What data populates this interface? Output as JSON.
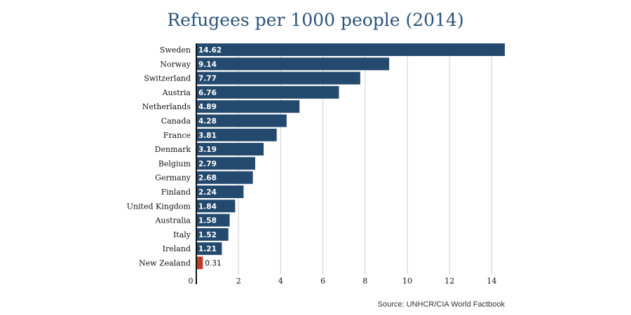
{
  "chart_data": {
    "type": "bar",
    "orientation": "horizontal",
    "title": "Refugees per 1000 people (2014)",
    "source": "Source: UNHCR/CIA World Factbook",
    "categories": [
      "Sweden",
      "Norway",
      "Switzerland",
      "Austria",
      "Netherlands",
      "Canada",
      "France",
      "Denmark",
      "Belgium",
      "Germany",
      "Finland",
      "United Kingdom",
      "Australia",
      "Italy",
      "Ireland",
      "New Zealand"
    ],
    "values": [
      14.62,
      9.14,
      7.77,
      6.76,
      4.89,
      4.28,
      3.81,
      3.19,
      2.79,
      2.68,
      2.24,
      1.84,
      1.58,
      1.52,
      1.21,
      0.31
    ],
    "value_labels": [
      "14.62",
      "9.14",
      "7.77",
      "6.76",
      "4.89",
      "4.28",
      "3.81",
      "3.19",
      "2.79",
      "2.68",
      "2.24",
      "1.84",
      "1.58",
      "1.52",
      "1.21",
      "0.31"
    ],
    "bar_colors": [
      "#234a6e",
      "#234a6e",
      "#234a6e",
      "#234a6e",
      "#234a6e",
      "#234a6e",
      "#234a6e",
      "#234a6e",
      "#234a6e",
      "#234a6e",
      "#234a6e",
      "#234a6e",
      "#234a6e",
      "#234a6e",
      "#234a6e",
      "#c0392b"
    ],
    "xticks": [
      0,
      2,
      4,
      6,
      8,
      10,
      12,
      14
    ],
    "xtick_labels": [
      "0",
      "2",
      "4",
      "6",
      "8",
      "10",
      "12",
      "14"
    ],
    "xlim": [
      0,
      14.62
    ],
    "grid": "vertical",
    "legend": "none"
  }
}
